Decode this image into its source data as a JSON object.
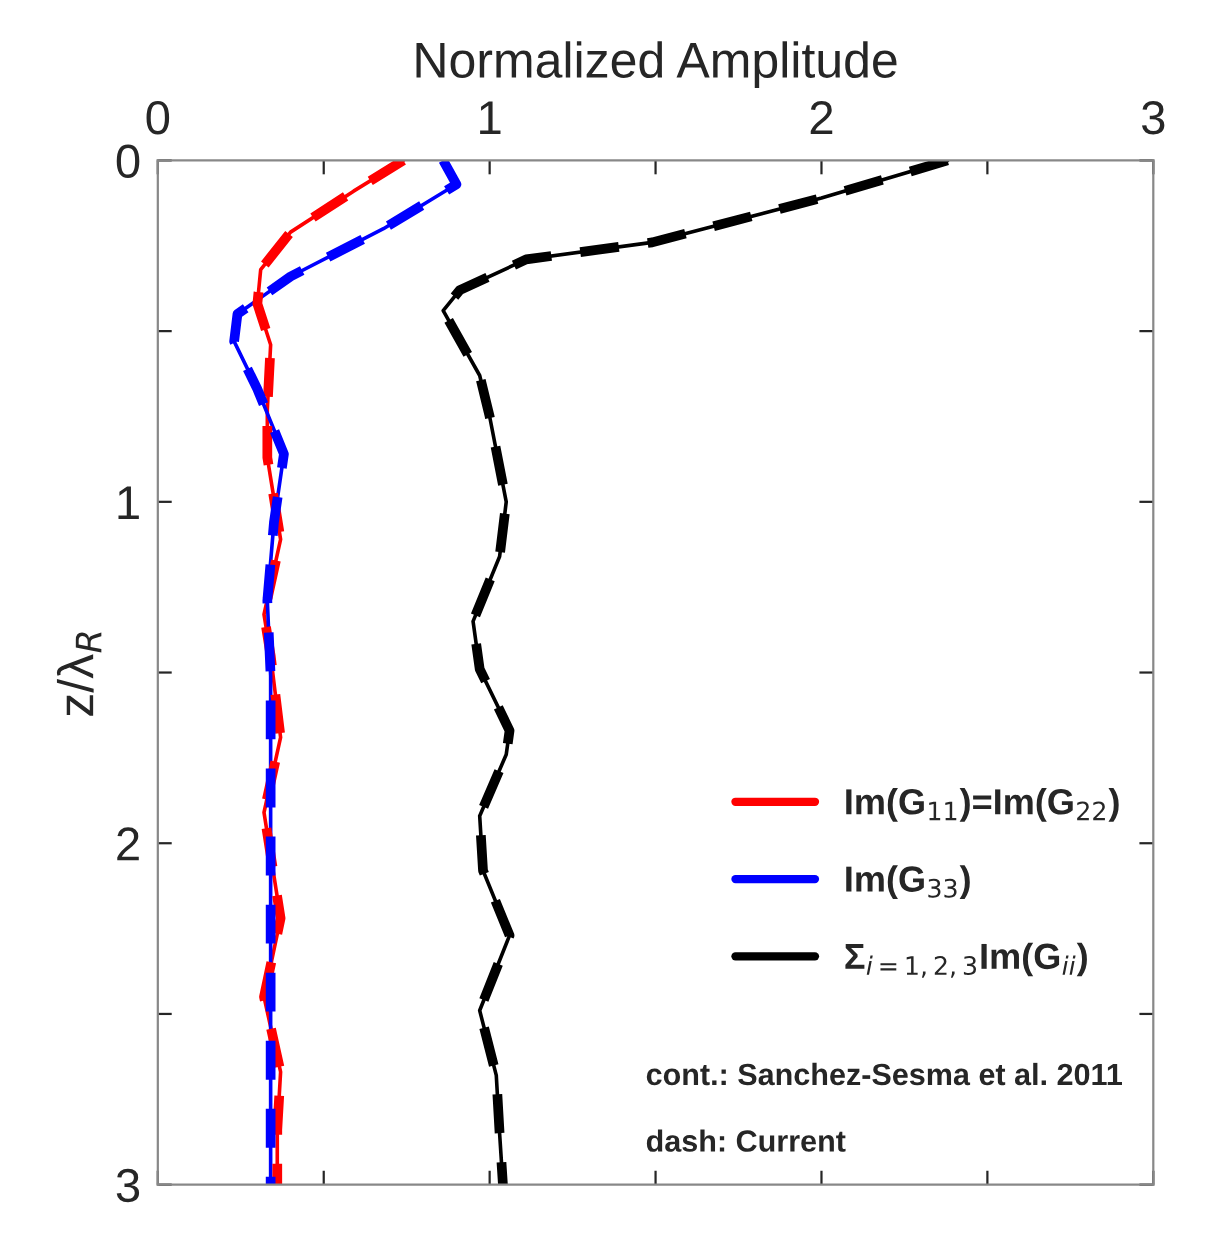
{
  "chart_data": {
    "type": "line",
    "xlabel": "Normalized Amplitude",
    "ylabel": "z/λ$_{R}$",
    "xlim": [
      0,
      3
    ],
    "ylim": [
      3,
      0
    ],
    "xticks": [
      0,
      {
        "value": 0.5,
        "label": null
      },
      1,
      {
        "value": 1.5,
        "label": null
      },
      2,
      {
        "value": 2.5,
        "label": null
      },
      3
    ],
    "yticks": [
      0,
      {
        "value": 0.5,
        "label": null
      },
      1,
      {
        "value": 1.5,
        "label": null
      },
      2,
      {
        "value": 2.5,
        "label": null
      },
      3
    ],
    "legend": "bottom right",
    "grid": false,
    "series": [
      {
        "name": "Im(G$_{11}$)=Im(G$_{22}$)",
        "color": "#ff0000",
        "line_style": "solid",
        "x": [
          0.74,
          0.59,
          0.4,
          0.31,
          0.3,
          0.34,
          0.33,
          0.33,
          0.37,
          0.32,
          0.34,
          0.37,
          0.32,
          0.37,
          0.32,
          0.37,
          0.36,
          0.36
        ],
        "values": [
          0,
          0.09,
          0.21,
          0.32,
          0.42,
          0.54,
          0.73,
          0.87,
          1.11,
          1.33,
          1.45,
          1.69,
          1.91,
          2.22,
          2.45,
          2.67,
          2.84,
          3
        ]
      },
      {
        "name": "Im(G$_{33}$)",
        "color": "#0000ff",
        "line_style": "solid",
        "x": [
          0.86,
          0.9,
          0.68,
          0.4,
          0.24,
          0.23,
          0.3,
          0.38,
          0.35,
          0.33,
          0.34,
          0.34,
          0.34,
          0.34
        ],
        "values": [
          0,
          0.07,
          0.2,
          0.34,
          0.45,
          0.53,
          0.67,
          0.86,
          1.06,
          1.29,
          1.51,
          1.95,
          2.5,
          3
        ]
      },
      {
        "name": "Σ$_{i=1,2,3}$Im(G$_{ii}$)",
        "color": "#000000",
        "line_style": "solid",
        "x": [
          2.38,
          2.0,
          1.49,
          1.11,
          0.91,
          0.86,
          0.97,
          1.0,
          1.05,
          1.03,
          0.95,
          0.97,
          1.06,
          1.05,
          0.97,
          0.98,
          1.06,
          0.97,
          1.02,
          1.03,
          1.04
        ],
        "values": [
          0,
          0.11,
          0.24,
          0.29,
          0.38,
          0.44,
          0.63,
          0.75,
          1.0,
          1.16,
          1.35,
          1.49,
          1.67,
          1.74,
          1.92,
          2.08,
          2.27,
          2.49,
          2.68,
          2.85,
          3
        ]
      },
      {
        "color": "#ff0000",
        "line_style": "dashed",
        "x": [
          0.74,
          0.59,
          0.4,
          0.31,
          0.3,
          0.34,
          0.33,
          0.33,
          0.37,
          0.32,
          0.34,
          0.37,
          0.32,
          0.37,
          0.32,
          0.37,
          0.36,
          0.36
        ],
        "values": [
          0,
          0.09,
          0.21,
          0.32,
          0.42,
          0.54,
          0.73,
          0.87,
          1.11,
          1.33,
          1.45,
          1.69,
          1.91,
          2.22,
          2.45,
          2.67,
          2.84,
          3
        ]
      },
      {
        "color": "#0000ff",
        "line_style": "dashed",
        "x": [
          0.86,
          0.9,
          0.68,
          0.4,
          0.24,
          0.23,
          0.3,
          0.38,
          0.35,
          0.33,
          0.34,
          0.34,
          0.34,
          0.34
        ],
        "values": [
          0,
          0.07,
          0.2,
          0.34,
          0.45,
          0.53,
          0.67,
          0.86,
          1.06,
          1.29,
          1.51,
          1.95,
          2.5,
          3
        ]
      },
      {
        "color": "#000000",
        "line_style": "dashed",
        "x": [
          2.38,
          2.0,
          1.49,
          1.11,
          0.91,
          0.86,
          0.97,
          1.0,
          1.05,
          1.03,
          0.95,
          0.97,
          1.06,
          1.05,
          0.97,
          0.98,
          1.06,
          0.97,
          1.02,
          1.03,
          1.04
        ],
        "values": [
          0,
          0.11,
          0.24,
          0.29,
          0.38,
          0.44,
          0.63,
          0.75,
          1.0,
          1.16,
          1.35,
          1.49,
          1.67,
          1.74,
          1.92,
          2.08,
          2.27,
          2.49,
          2.68,
          2.85,
          3
        ]
      }
    ],
    "annotations": [
      "cont.: Sanchez-Sesma et al. 2011",
      "dash: Current"
    ]
  }
}
